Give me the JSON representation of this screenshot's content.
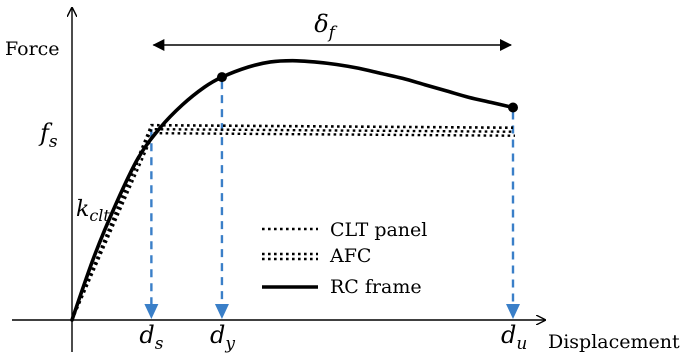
{
  "chart_data": {
    "type": "line",
    "xlabel": "Displacement",
    "ylabel": "Force",
    "origin": [
      0,
      0
    ],
    "markers": {
      "ds": {
        "label": "d",
        "sub": "s",
        "x": 0.18
      },
      "dy": {
        "label": "d",
        "sub": "y",
        "x": 0.34
      },
      "du": {
        "label": "d",
        "sub": "u",
        "x": 1.0
      }
    },
    "fs": {
      "label": "f",
      "sub": "s",
      "y": 0.77
    },
    "kclt": {
      "label": "k",
      "sub": "clt"
    },
    "delta_f": {
      "label": "δ",
      "sub": "f",
      "from": 0.18,
      "to": 1.0
    },
    "series": [
      {
        "name": "CLT panel",
        "style": "dotted",
        "x": [
          0,
          0.18,
          1.0
        ],
        "y": [
          0,
          0.77,
          0.76
        ]
      },
      {
        "name": "AFC",
        "style": "double-dotted",
        "x": [
          0,
          0.18,
          1.0
        ],
        "y": [
          0,
          0.77,
          0.76
        ]
      },
      {
        "name": "RC frame",
        "style": "solid",
        "x": [
          0,
          0.05,
          0.1,
          0.15,
          0.2,
          0.25,
          0.3,
          0.34,
          0.4,
          0.45,
          0.5,
          0.55,
          0.6,
          0.65,
          0.7,
          0.75,
          0.8,
          0.85,
          0.9,
          0.95,
          1.0
        ],
        "y": [
          0,
          0.25,
          0.46,
          0.64,
          0.76,
          0.85,
          0.92,
          0.96,
          1.0,
          1.02,
          1.025,
          1.02,
          1.01,
          0.995,
          0.975,
          0.955,
          0.93,
          0.905,
          0.88,
          0.86,
          0.84
        ]
      }
    ],
    "colors": {
      "guide": "#3a7fc8",
      "line": "#000000"
    }
  }
}
